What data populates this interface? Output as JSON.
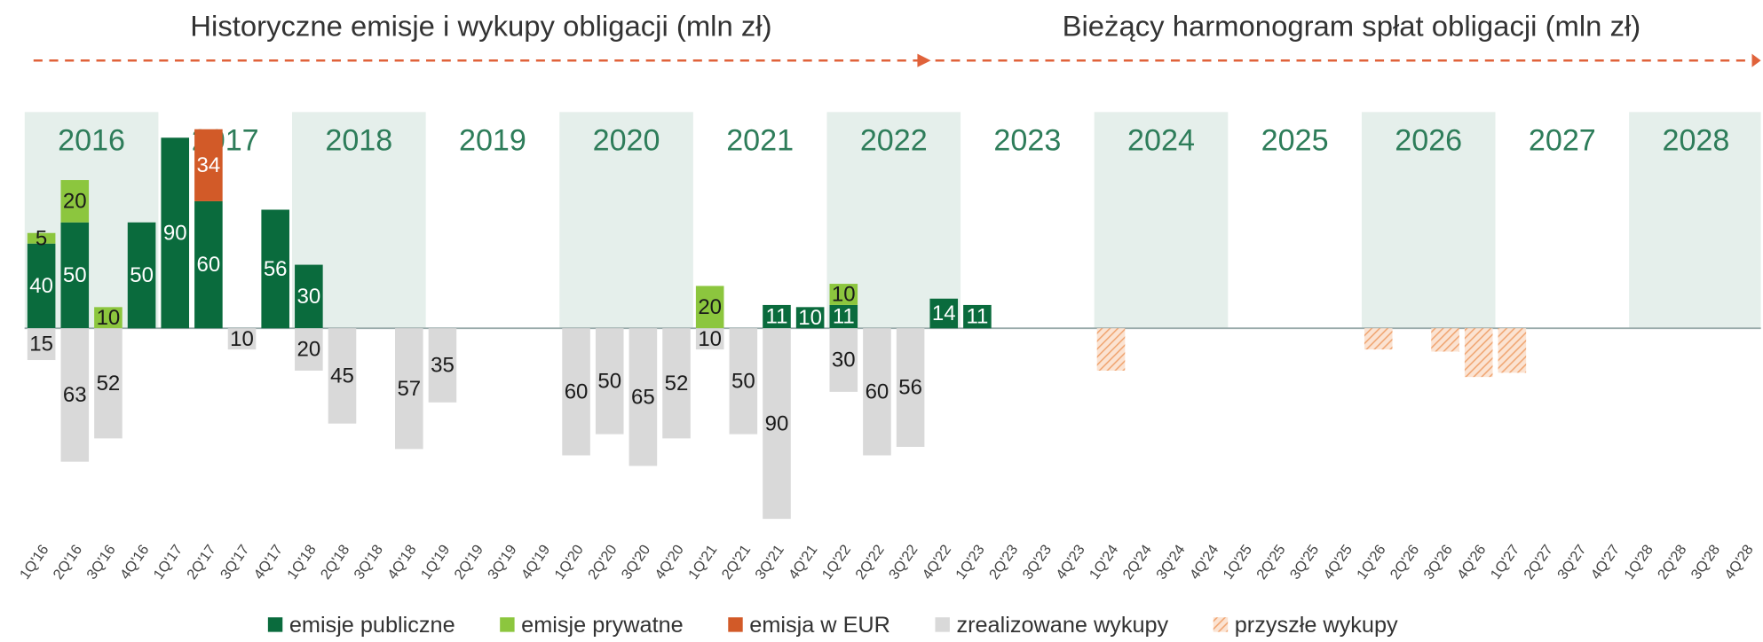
{
  "chart_data": {
    "type": "bar",
    "titles": [
      "Historyczne emisje i wykupy obligacji (mln zł)",
      "Bieżący harmonogram spłat obligacji (mln zł)"
    ],
    "years": [
      "2016",
      "2017",
      "2018",
      "2019",
      "2020",
      "2021",
      "2022",
      "2023",
      "2024",
      "2025",
      "2026",
      "2027",
      "2028"
    ],
    "categories": [
      "1Q'16",
      "2Q'16",
      "3Q'16",
      "4Q'16",
      "1Q'17",
      "2Q'17",
      "3Q'17",
      "4Q'17",
      "1Q'18",
      "2Q'18",
      "3Q'18",
      "4Q'18",
      "1Q'19",
      "2Q'19",
      "3Q'19",
      "4Q'19",
      "1Q'20",
      "2Q'20",
      "3Q'20",
      "4Q'20",
      "1Q'21",
      "2Q'21",
      "3Q'21",
      "4Q'21",
      "1Q'22",
      "2Q'22",
      "3Q'22",
      "4Q'22",
      "1Q'23",
      "2Q'23",
      "3Q'23",
      "4Q'23",
      "1Q'24",
      "2Q'24",
      "3Q'24",
      "4Q'24",
      "1Q'25",
      "2Q'25",
      "3Q'25",
      "4Q'25",
      "1Q'26",
      "2Q'26",
      "3Q'26",
      "4Q'26",
      "1Q'27",
      "2Q'27",
      "3Q'27",
      "4Q'27",
      "1Q'28",
      "2Q'28",
      "3Q'28",
      "4Q'28"
    ],
    "series": [
      {
        "name": "emisje publiczne",
        "color": "#0a6b3d",
        "label_color": "#ffffff",
        "direction": "up",
        "values": [
          40,
          50,
          null,
          50,
          90,
          60,
          null,
          56,
          30,
          null,
          null,
          null,
          null,
          null,
          null,
          null,
          null,
          null,
          null,
          null,
          null,
          null,
          11,
          10,
          11,
          null,
          null,
          14,
          11,
          null,
          null,
          null,
          null,
          null,
          null,
          null,
          null,
          null,
          null,
          null,
          null,
          null,
          null,
          null,
          null,
          null,
          null,
          null,
          null,
          null,
          null,
          null
        ]
      },
      {
        "name": "emisje prywatne",
        "color": "#8cc63e",
        "label_color": "#1a1a1a",
        "direction": "up",
        "values": [
          5,
          20,
          10,
          null,
          null,
          null,
          null,
          null,
          null,
          null,
          null,
          null,
          null,
          null,
          null,
          null,
          null,
          null,
          null,
          null,
          20,
          null,
          null,
          null,
          10,
          null,
          null,
          null,
          null,
          null,
          null,
          null,
          null,
          null,
          null,
          null,
          null,
          null,
          null,
          null,
          null,
          null,
          null,
          null,
          null,
          null,
          null,
          null,
          null,
          null,
          null,
          null
        ]
      },
      {
        "name": "emisja w EUR",
        "color": "#d25a28",
        "label_color": "#ffffff",
        "direction": "up",
        "values": [
          null,
          null,
          null,
          null,
          null,
          34,
          null,
          null,
          null,
          null,
          null,
          null,
          null,
          null,
          null,
          null,
          null,
          null,
          null,
          null,
          null,
          null,
          null,
          null,
          null,
          null,
          null,
          null,
          null,
          null,
          null,
          null,
          null,
          null,
          null,
          null,
          null,
          null,
          null,
          null,
          null,
          null,
          null,
          null,
          null,
          null,
          null,
          null,
          null,
          null,
          null,
          null
        ]
      },
      {
        "name": "zrealizowane wykupy",
        "color": "#d9d9d9",
        "label_color": "#1a1a1a",
        "direction": "down",
        "values": [
          15,
          63,
          52,
          null,
          null,
          null,
          10,
          null,
          20,
          45,
          null,
          57,
          35,
          null,
          null,
          null,
          60,
          50,
          65,
          52,
          10,
          50,
          90,
          null,
          30,
          60,
          56,
          null,
          null,
          null,
          null,
          null,
          null,
          null,
          null,
          null,
          null,
          null,
          null,
          null,
          null,
          null,
          null,
          null,
          null,
          null,
          null,
          null,
          null,
          null,
          null,
          null
        ]
      },
      {
        "name": "przyszłe wykupy",
        "color": "#f0a673",
        "hatch": true,
        "direction": "down",
        "values": [
          null,
          null,
          null,
          null,
          null,
          null,
          null,
          null,
          null,
          null,
          null,
          null,
          null,
          null,
          null,
          null,
          null,
          null,
          null,
          null,
          null,
          null,
          null,
          null,
          null,
          null,
          null,
          null,
          null,
          null,
          null,
          null,
          20,
          null,
          null,
          null,
          null,
          null,
          null,
          null,
          10,
          null,
          11,
          23,
          21,
          null,
          null,
          null,
          null,
          null,
          null,
          null
        ]
      }
    ]
  }
}
